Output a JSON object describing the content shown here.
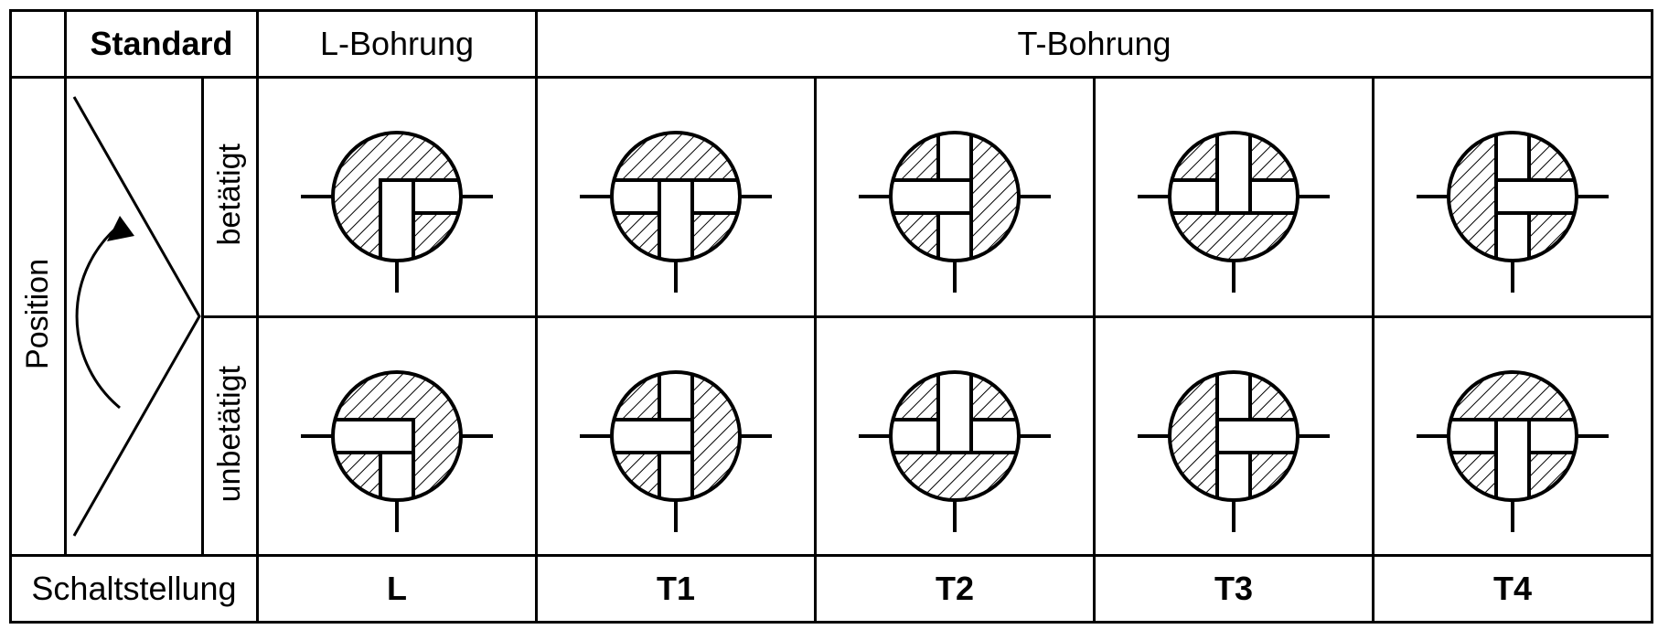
{
  "labels": {
    "position": "Position",
    "standard": "Standard",
    "lBore": "L-Bohrung",
    "tBore": "T-Bohrung",
    "actuated": "betätigt",
    "unactuated": "unbetätigt",
    "switchPosition": "Schaltstellung",
    "codes": {
      "L": "L",
      "T1": "T1",
      "T2": "T2",
      "T3": "T3",
      "T4": "T4"
    }
  },
  "valves": {
    "radius": 70,
    "portLen": 105,
    "boreHalfWidth": 18,
    "strokeColor": "#000000",
    "strokeWidth": 4,
    "hatchStroke": "#000000",
    "hatchWidth": 2,
    "hatchSpacing": 11,
    "hatchAngle": 45,
    "cells": [
      {
        "id": "a-L",
        "ports": [
          "left",
          "right",
          "bottom"
        ],
        "rot": 0,
        "type": "L"
      },
      {
        "id": "a-T1",
        "ports": [
          "left",
          "right",
          "bottom"
        ],
        "rot": 0,
        "type": "T"
      },
      {
        "id": "a-T2",
        "ports": [
          "left",
          "right",
          "bottom"
        ],
        "rot": 90,
        "type": "T"
      },
      {
        "id": "a-T3",
        "ports": [
          "left",
          "right",
          "bottom"
        ],
        "rot": 180,
        "type": "T"
      },
      {
        "id": "a-T4",
        "ports": [
          "left",
          "right",
          "bottom"
        ],
        "rot": 270,
        "type": "T"
      },
      {
        "id": "u-L",
        "ports": [
          "left",
          "right",
          "bottom"
        ],
        "rot": 90,
        "type": "L"
      },
      {
        "id": "u-T1",
        "ports": [
          "left",
          "right",
          "bottom"
        ],
        "rot": 90,
        "type": "T"
      },
      {
        "id": "u-T2",
        "ports": [
          "left",
          "right",
          "bottom"
        ],
        "rot": 180,
        "type": "T"
      },
      {
        "id": "u-T3",
        "ports": [
          "left",
          "right",
          "bottom"
        ],
        "rot": 270,
        "type": "T"
      },
      {
        "id": "u-T4",
        "ports": [
          "left",
          "right",
          "bottom"
        ],
        "rot": 0,
        "type": "T"
      }
    ]
  },
  "arrowDiagram": {
    "stroke": "#000000",
    "strokeWidth": 3
  }
}
